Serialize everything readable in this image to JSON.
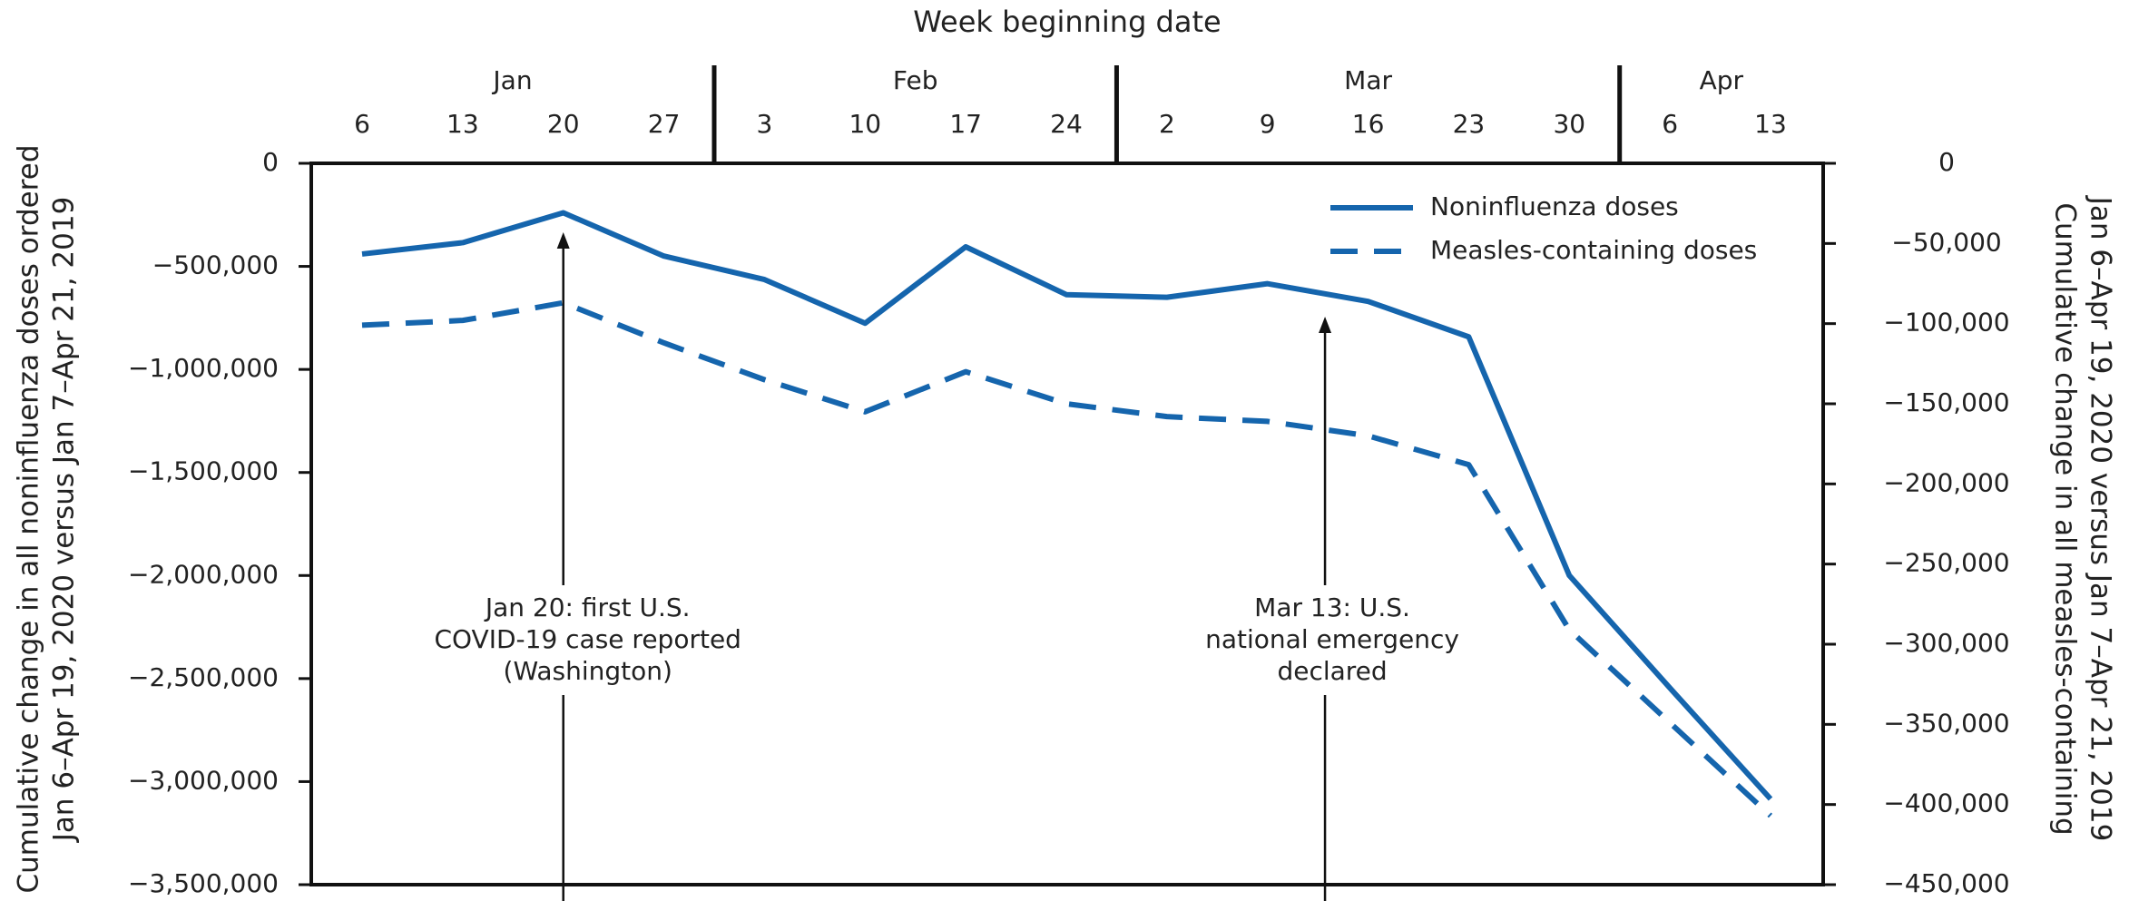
{
  "chart_data": {
    "type": "line",
    "title": "Week beginning date",
    "ylabel": [
      "Cumulative change in all noninfluenza doses ordered",
      "Jan 6–Apr 19, 2020 versus Jan 7–Apr 21, 2019"
    ],
    "y2label": [
      "Cumulative change in all measles-containing",
      "Jan 6–Apr 19, 2020 versus Jan 7–Apr 21, 2019"
    ],
    "months": [
      "Jan",
      "Feb",
      "Mar",
      "Apr"
    ],
    "categories": [
      "6",
      "13",
      "20",
      "27",
      "3",
      "10",
      "17",
      "24",
      "2",
      "9",
      "16",
      "23",
      "30",
      "6",
      "13"
    ],
    "series": [
      {
        "name": "Noninfluenza doses",
        "color": "#1565ad",
        "axis": "y",
        "dashed": false,
        "values": [
          -440000,
          -385000,
          -240000,
          -450000,
          -564000,
          -776000,
          -405000,
          -637000,
          -650000,
          -584000,
          -670000,
          -842000,
          -2000000,
          -2546000,
          -3084000
        ]
      },
      {
        "name": "Measles-containing doses",
        "color": "#1565ad",
        "axis": "y2",
        "dashed": true,
        "values": [
          -101000,
          -98000,
          -87000,
          -112000,
          -135000,
          -155000,
          -130000,
          -150000,
          -158000,
          -161000,
          -170000,
          -188000,
          -291000,
          -349000,
          -407000
        ]
      }
    ],
    "ylim": [
      -3500000,
      0
    ],
    "yticks": [
      0,
      {
        "value": -500000,
        "label": "−500,000"
      },
      {
        "value": -1000000,
        "label": "−1,000,000"
      },
      {
        "value": -1500000,
        "label": "−1,500,000"
      },
      {
        "value": -2000000,
        "label": "−2,000,000"
      },
      {
        "value": -2500000,
        "label": "−2,500,000"
      },
      {
        "value": -3000000,
        "label": "−3,000,000"
      },
      {
        "value": -3500000,
        "label": "−3,500,000"
      }
    ],
    "y2lim": [
      -450000,
      0
    ],
    "y2ticks": [
      0,
      {
        "value": -50000,
        "label": "−50,000"
      },
      {
        "value": -100000,
        "label": "−100,000"
      },
      {
        "value": -150000,
        "label": "−150,000"
      },
      {
        "value": -200000,
        "label": "−200,000"
      },
      {
        "value": -250000,
        "label": "−250,000"
      },
      {
        "value": -300000,
        "label": "−300,000"
      },
      {
        "value": -350000,
        "label": "−350,000"
      },
      {
        "value": -400000,
        "label": "−400,000"
      },
      {
        "value": -450000,
        "label": "−450,000"
      }
    ],
    "legend": "top-right",
    "annotations": [
      {
        "lines": [
          "Jan 20: first U.S.",
          "COVID-19 case reported",
          "(Washington)"
        ]
      },
      {
        "lines": [
          "Mar 13: U.S.",
          "national emergency",
          "declared"
        ]
      }
    ]
  }
}
